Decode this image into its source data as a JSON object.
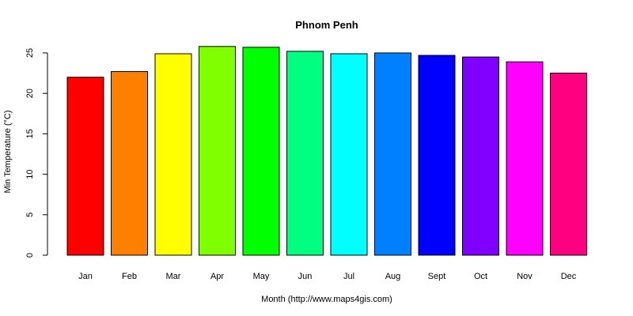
{
  "chart_data": {
    "type": "bar",
    "title": "Phnom Penh",
    "xlabel": "Month (http://www.maps4gis.com)",
    "ylabel": "Min Temperature (°C)",
    "categories": [
      "Jan",
      "Feb",
      "Mar",
      "Apr",
      "May",
      "Jun",
      "Jul",
      "Aug",
      "Sept",
      "Oct",
      "Nov",
      "Dec"
    ],
    "values": [
      22.0,
      22.7,
      24.9,
      25.8,
      25.7,
      25.2,
      24.9,
      25.0,
      24.7,
      24.5,
      23.9,
      22.5
    ],
    "colors": [
      "#FF0000",
      "#FF8000",
      "#FFFF00",
      "#80FF00",
      "#00FF00",
      "#00FF80",
      "#00FFFF",
      "#0080FF",
      "#0000FF",
      "#8000FF",
      "#FF00FF",
      "#FF0080"
    ],
    "ylim": [
      0,
      25
    ],
    "yticks": [
      0,
      5,
      10,
      15,
      20,
      25
    ],
    "grid": false,
    "legend": "none"
  }
}
